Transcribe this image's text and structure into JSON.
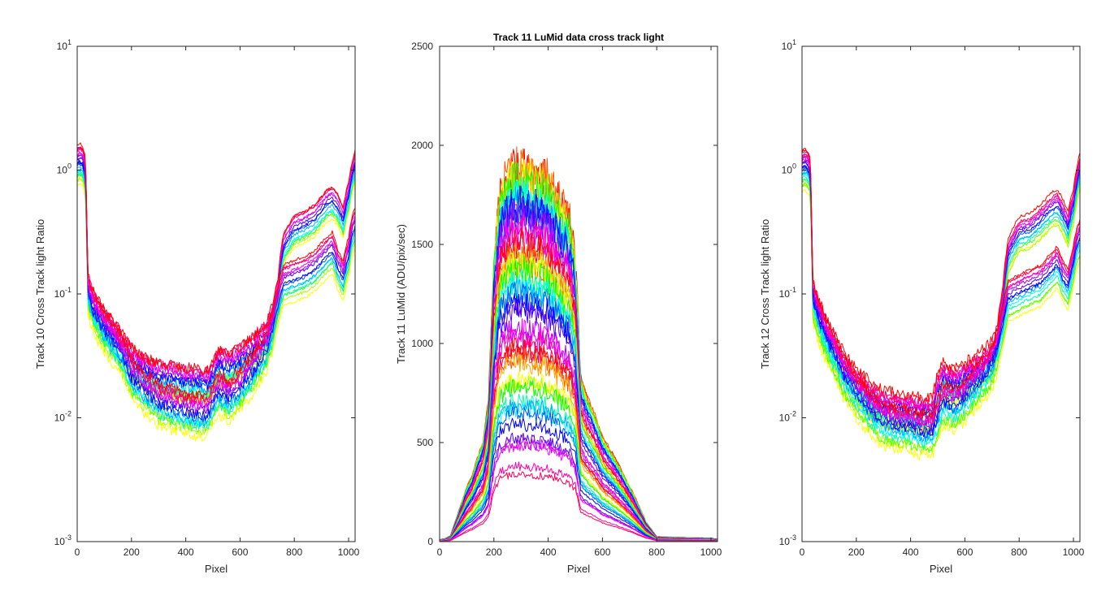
{
  "chart_data": [
    {
      "type": "line",
      "title": "",
      "xlabel": "Pixel",
      "ylabel": "Track 10  Cross Track light Ratio",
      "xlim": [
        0,
        1024
      ],
      "ylim": [
        0.001,
        10
      ],
      "yscale": "log",
      "xticks": [
        0,
        200,
        400,
        600,
        800,
        1000
      ],
      "xtick_labels": [
        "0",
        "200",
        "400",
        "600",
        "800",
        "1000"
      ],
      "yticks": [
        0.001,
        0.01,
        0.1,
        1,
        10
      ],
      "ytick_labels": [
        {
          "base": "10",
          "exp": "-3"
        },
        {
          "base": "10",
          "exp": "-2"
        },
        {
          "base": "10",
          "exp": "-1"
        },
        {
          "base": "10",
          "exp": "0"
        },
        {
          "base": "10",
          "exp": "1"
        }
      ],
      "grid": false,
      "colors": [
        "#ffff00",
        "#aaff00",
        "#55ff00",
        "#00ffaa",
        "#00ffff",
        "#00aaff",
        "#0055ff",
        "#0000ff",
        "#5500ff",
        "#aa00ff",
        "#ff00ff",
        "#ff00aa",
        "#ff0055",
        "#ff0000"
      ],
      "series_groups": [
        {
          "x": [
            0,
            10,
            20,
            30,
            35,
            40,
            60,
            80,
            100,
            150,
            200,
            250,
            300,
            350,
            400,
            440,
            480,
            500,
            520,
            560,
            600,
            640,
            680,
            700,
            720,
            740,
            760,
            800,
            840,
            880,
            920,
            940,
            960,
            980,
            1000,
            1010,
            1024
          ],
          "y": [
            1.1,
            1.15,
            1.1,
            0.9,
            0.3,
            0.1,
            0.075,
            0.065,
            0.055,
            0.04,
            0.028,
            0.023,
            0.021,
            0.02,
            0.019,
            0.019,
            0.018,
            0.021,
            0.026,
            0.025,
            0.028,
            0.033,
            0.04,
            0.045,
            0.06,
            0.1,
            0.23,
            0.32,
            0.35,
            0.4,
            0.52,
            0.55,
            0.48,
            0.38,
            0.6,
            0.8,
            1.1
          ],
          "spread": 0.28,
          "count": 14
        },
        {
          "x": [
            0,
            10,
            20,
            30,
            35,
            40,
            60,
            80,
            100,
            150,
            200,
            250,
            300,
            350,
            400,
            440,
            480,
            500,
            520,
            560,
            600,
            640,
            680,
            700,
            720,
            740,
            760,
            800,
            840,
            880,
            920,
            940,
            960,
            980,
            1000,
            1010,
            1024
          ],
          "y": [
            1.1,
            1.15,
            1.1,
            0.9,
            0.3,
            0.1,
            0.072,
            0.06,
            0.05,
            0.035,
            0.021,
            0.016,
            0.013,
            0.012,
            0.011,
            0.0105,
            0.0105,
            0.013,
            0.016,
            0.014,
            0.017,
            0.022,
            0.03,
            0.036,
            0.05,
            0.08,
            0.12,
            0.13,
            0.14,
            0.16,
            0.2,
            0.22,
            0.16,
            0.13,
            0.2,
            0.28,
            0.35
          ],
          "spread": 0.32,
          "count": 14
        }
      ]
    },
    {
      "type": "line",
      "title": "Track 11 LuMid  data cross track light",
      "xlabel": "Pixel",
      "ylabel": "Track 11 LuMid (ADU/pix/sec)",
      "xlim": [
        0,
        1024
      ],
      "ylim": [
        0,
        2500
      ],
      "yscale": "linear",
      "xticks": [
        0,
        200,
        400,
        600,
        800,
        1000
      ],
      "xtick_labels": [
        "0",
        "200",
        "400",
        "600",
        "800",
        "1000"
      ],
      "yticks": [
        0,
        500,
        1000,
        1500,
        2000,
        2500
      ],
      "ytick_labels": [
        "0",
        "500",
        "1000",
        "1500",
        "2000",
        "2500"
      ],
      "grid": false,
      "colors": [
        "#ff0000",
        "#ff5500",
        "#ffaa00",
        "#ffff00",
        "#aaff00",
        "#00ff00",
        "#00ffaa",
        "#00ffff",
        "#00aaff",
        "#0055ff",
        "#0000ff",
        "#5500ff",
        "#aa00ff",
        "#ff00ff",
        "#ff00aa",
        "#ff0055"
      ],
      "series_groups": [
        {
          "x": [
            0,
            20,
            40,
            60,
            80,
            100,
            120,
            140,
            160,
            180,
            200,
            220,
            240,
            260,
            280,
            300,
            320,
            340,
            360,
            380,
            400,
            420,
            440,
            460,
            480,
            500,
            520,
            540,
            560,
            580,
            600,
            640,
            680,
            720,
            760,
            800,
            860,
            920,
            980,
            1000,
            1024
          ],
          "y": [
            10,
            15,
            30,
            110,
            190,
            270,
            330,
            420,
            500,
            700,
            1380,
            1720,
            1800,
            1850,
            1860,
            1870,
            1850,
            1840,
            1830,
            1820,
            1800,
            1750,
            1700,
            1650,
            1600,
            1400,
            820,
            730,
            670,
            600,
            520,
            430,
            330,
            220,
            100,
            25,
            22,
            20,
            18,
            18,
            12
          ],
          "min_scale": 0.2,
          "count": 48
        }
      ]
    },
    {
      "type": "line",
      "title": "",
      "xlabel": "Pixel",
      "ylabel": "Track 12  Cross Track light Ratio",
      "xlim": [
        0,
        1024
      ],
      "ylim": [
        0.001,
        10
      ],
      "yscale": "log",
      "xticks": [
        0,
        200,
        400,
        600,
        800,
        1000
      ],
      "xtick_labels": [
        "0",
        "200",
        "400",
        "600",
        "800",
        "1000"
      ],
      "yticks": [
        0.001,
        0.01,
        0.1,
        1,
        10
      ],
      "ytick_labels": [
        {
          "base": "10",
          "exp": "-3"
        },
        {
          "base": "10",
          "exp": "-2"
        },
        {
          "base": "10",
          "exp": "-1"
        },
        {
          "base": "10",
          "exp": "0"
        },
        {
          "base": "10",
          "exp": "1"
        }
      ],
      "grid": false,
      "colors": [
        "#ffff00",
        "#aaff00",
        "#55ff00",
        "#00ffaa",
        "#00ffff",
        "#00aaff",
        "#0055ff",
        "#0000ff",
        "#5500ff",
        "#aa00ff",
        "#ff00ff",
        "#ff00aa",
        "#ff0055",
        "#ff0000"
      ],
      "series_groups": [
        {
          "x": [
            0,
            10,
            20,
            30,
            35,
            40,
            60,
            80,
            100,
            150,
            200,
            250,
            300,
            350,
            400,
            440,
            480,
            500,
            520,
            560,
            600,
            640,
            680,
            700,
            720,
            740,
            760,
            800,
            840,
            880,
            920,
            940,
            960,
            980,
            1000,
            1010,
            1024
          ],
          "y": [
            1.0,
            1.05,
            1.0,
            0.9,
            0.3,
            0.09,
            0.065,
            0.05,
            0.04,
            0.025,
            0.018,
            0.014,
            0.012,
            0.0115,
            0.011,
            0.0105,
            0.0105,
            0.016,
            0.02,
            0.018,
            0.02,
            0.023,
            0.027,
            0.03,
            0.04,
            0.08,
            0.2,
            0.3,
            0.32,
            0.38,
            0.47,
            0.5,
            0.42,
            0.33,
            0.5,
            0.7,
            1.0
          ],
          "spread": 0.28,
          "count": 14
        },
        {
          "x": [
            0,
            10,
            20,
            30,
            35,
            40,
            60,
            80,
            100,
            150,
            200,
            250,
            300,
            350,
            400,
            440,
            480,
            500,
            520,
            560,
            600,
            640,
            680,
            700,
            720,
            740,
            760,
            800,
            840,
            880,
            920,
            940,
            960,
            980,
            1000,
            1010,
            1024
          ],
          "y": [
            1.0,
            1.05,
            1.0,
            0.9,
            0.3,
            0.09,
            0.062,
            0.048,
            0.038,
            0.022,
            0.015,
            0.011,
            0.009,
            0.0085,
            0.0082,
            0.0075,
            0.0075,
            0.01,
            0.013,
            0.012,
            0.014,
            0.018,
            0.022,
            0.026,
            0.035,
            0.055,
            0.09,
            0.1,
            0.11,
            0.12,
            0.15,
            0.17,
            0.13,
            0.11,
            0.17,
            0.23,
            0.28
          ],
          "spread": 0.32,
          "count": 14
        }
      ]
    }
  ]
}
